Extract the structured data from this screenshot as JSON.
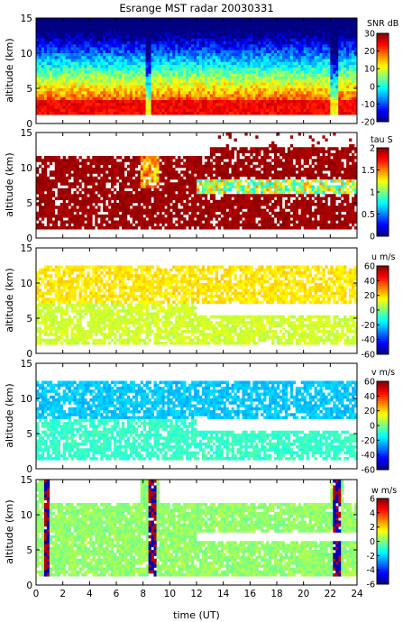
{
  "chart_data": {
    "type": "heatmap",
    "title": "Esrange MST radar 20030331",
    "xlabel": "time (UT)",
    "xlim": [
      0,
      24
    ],
    "x_ticks": [
      0,
      2,
      4,
      6,
      8,
      10,
      12,
      14,
      16,
      18,
      20,
      22,
      24
    ],
    "panels": [
      {
        "ylabel": "altitude (km)",
        "ylim": [
          0,
          15
        ],
        "y_ticks": [
          0,
          5,
          10,
          15
        ],
        "colorbar": {
          "label": "SNR dB",
          "range": [
            -20,
            30
          ],
          "ticks": [
            30,
            20,
            10,
            0,
            -10,
            -20
          ]
        },
        "description": "SNR highest (≈20–30 dB) below 4 km, decreasing with altitude to ≈-10 dB near 15 km"
      },
      {
        "ylabel": "altitude (km)",
        "ylim": [
          0,
          15
        ],
        "y_ticks": [
          0,
          5,
          10,
          15
        ],
        "colorbar": {
          "label": "tau S",
          "range": [
            0,
            2
          ],
          "ticks": [
            2,
            1.5,
            1,
            0.5,
            0
          ]
        },
        "description": "correlation time mostly saturated (≈2 s) between 1 and 11 km, lower values near 7 km after 12 UT"
      },
      {
        "ylabel": "altitude (km)",
        "ylim": [
          0,
          15
        ],
        "y_ticks": [
          0,
          5,
          10,
          15
        ],
        "colorbar": {
          "label": "u m/s",
          "range": [
            -60,
            60
          ],
          "ticks": [
            60,
            40,
            20,
            0,
            -20,
            -40,
            -60
          ]
        },
        "description": "zonal wind weakly positive (≈5–25 m/s), strongest near 10 km"
      },
      {
        "ylabel": "altitude (km)",
        "ylim": [
          0,
          15
        ],
        "y_ticks": [
          0,
          5,
          10,
          15
        ],
        "colorbar": {
          "label": "v m/s",
          "range": [
            -60,
            60
          ],
          "ticks": [
            60,
            40,
            20,
            0,
            -20,
            -40,
            -60
          ]
        },
        "description": "meridional wind negative (≈-10 to -25 m/s) at 8–11 km"
      },
      {
        "ylabel": "altitude (km)",
        "ylim": [
          0,
          15
        ],
        "y_ticks": [
          0,
          5,
          10,
          15
        ],
        "colorbar": {
          "label": "w m/s",
          "range": [
            -6,
            6
          ],
          "ticks": [
            6,
            4,
            2,
            0,
            -2,
            -4,
            -6
          ]
        },
        "description": "vertical wind near zero with strong excursions near 0.8, 8.5, 22.5 UT"
      }
    ]
  }
}
